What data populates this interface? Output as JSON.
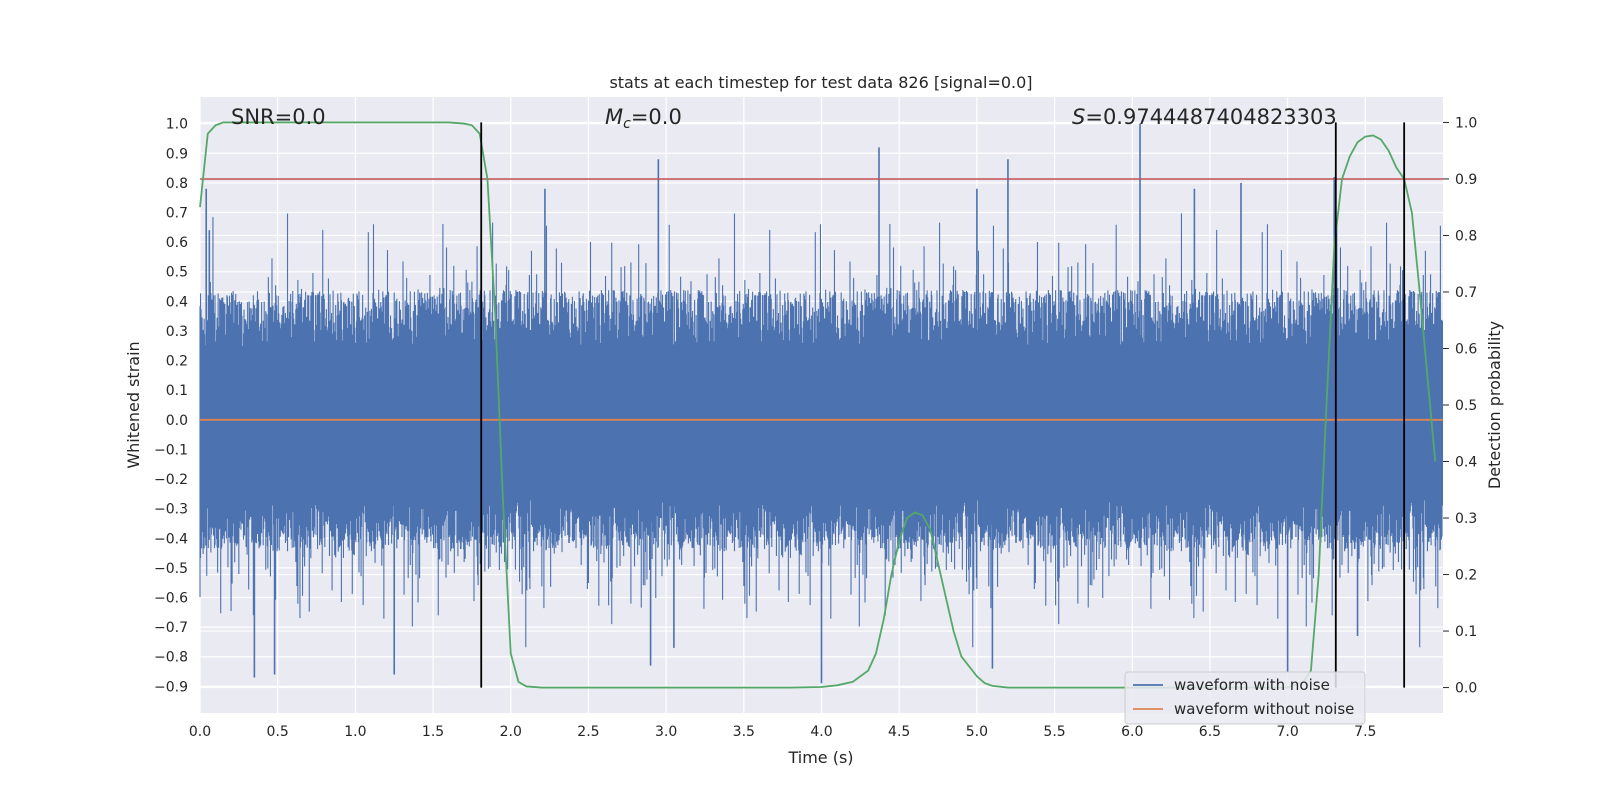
{
  "chart_data": {
    "type": "line",
    "title": "stats at each timestep for test data 826 [signal=0.0]",
    "xlabel": "Time (s)",
    "ylabel": "Whitened strain",
    "y2label": "Detection probability",
    "xlim": [
      0.0,
      8.0
    ],
    "ylim": [
      -0.99,
      1.09
    ],
    "y2lim": [
      -0.045,
      1.045
    ],
    "x_ticks": [
      "0.0",
      "0.5",
      "1.0",
      "1.5",
      "2.0",
      "2.5",
      "3.0",
      "3.5",
      "4.0",
      "4.5",
      "5.0",
      "5.5",
      "6.0",
      "6.5",
      "7.0",
      "7.5"
    ],
    "y_ticks": [
      "1.0",
      "0.9",
      "0.8",
      "0.7",
      "0.6",
      "0.5",
      "0.4",
      "0.3",
      "0.2",
      "0.1",
      "0.0",
      "−0.1",
      "−0.2",
      "−0.3",
      "−0.4",
      "−0.5",
      "−0.6",
      "−0.7",
      "−0.8",
      "−0.9"
    ],
    "y2_ticks": [
      "1.0",
      "0.9",
      "0.8",
      "0.7",
      "0.6",
      "0.5",
      "0.4",
      "0.3",
      "0.2",
      "0.1",
      "0.0"
    ],
    "grid": true,
    "legend_position": "bottom-right",
    "annotations": {
      "snr": "SNR=0.0",
      "mc_symbol": "M",
      "mc_sub": "c",
      "mc_value": "=0.0",
      "s_symbol": "S",
      "s_value": "=0.9744487404823303"
    },
    "series": [
      {
        "name": "waveform with noise",
        "color": "#4c72b0",
        "style": "dense noise",
        "core_band": [
          -0.35,
          0.44
        ],
        "spikes": [
          [
            0.04,
            0.78
          ],
          [
            0.06,
            0.64
          ],
          [
            0.35,
            -0.87
          ],
          [
            0.48,
            -0.86
          ],
          [
            1.25,
            -0.86
          ],
          [
            2.22,
            0.78
          ],
          [
            2.9,
            -0.83
          ],
          [
            2.95,
            0.88
          ],
          [
            3.05,
            -0.77
          ],
          [
            4.0,
            -0.89
          ],
          [
            4.37,
            0.92
          ],
          [
            5.2,
            0.88
          ],
          [
            5.0,
            0.78
          ],
          [
            5.1,
            -0.84
          ],
          [
            6.05,
            1.0
          ],
          [
            6.4,
            0.78
          ],
          [
            6.7,
            0.8
          ],
          [
            7.0,
            -0.85
          ],
          [
            7.3,
            0.82
          ],
          [
            7.45,
            -0.73
          ]
        ]
      },
      {
        "name": "waveform without noise",
        "color": "#dd8452",
        "values_constant": 0.0
      },
      {
        "name": "detection probability",
        "color": "#55a868",
        "axis": "right",
        "x": [
          0.0,
          0.05,
          0.1,
          0.15,
          0.3,
          0.6,
          1.0,
          1.4,
          1.6,
          1.7,
          1.75,
          1.8,
          1.85,
          1.9,
          1.95,
          2.0,
          2.05,
          2.1,
          2.2,
          2.5,
          3.0,
          3.5,
          3.8,
          4.0,
          4.1,
          4.2,
          4.3,
          4.35,
          4.4,
          4.45,
          4.5,
          4.55,
          4.6,
          4.65,
          4.7,
          4.75,
          4.8,
          4.85,
          4.9,
          5.0,
          5.05,
          5.1,
          5.2,
          5.4,
          6.0,
          7.0,
          7.1,
          7.15,
          7.2,
          7.25,
          7.3,
          7.35,
          7.4,
          7.45,
          7.5,
          7.55,
          7.6,
          7.65,
          7.7,
          7.75,
          7.8,
          7.85,
          7.9,
          7.95
        ],
        "values": [
          0.85,
          0.98,
          0.995,
          1.0,
          1.0,
          1.0,
          1.0,
          1.0,
          1.0,
          0.998,
          0.995,
          0.98,
          0.9,
          0.66,
          0.33,
          0.06,
          0.01,
          0.002,
          0.0,
          0.0,
          0.0,
          0.0,
          0.0,
          0.001,
          0.004,
          0.01,
          0.03,
          0.06,
          0.12,
          0.2,
          0.26,
          0.3,
          0.31,
          0.305,
          0.28,
          0.22,
          0.16,
          0.1,
          0.055,
          0.02,
          0.008,
          0.003,
          0.0,
          0.0,
          0.0,
          0.0,
          0.01,
          0.03,
          0.2,
          0.5,
          0.78,
          0.9,
          0.94,
          0.965,
          0.975,
          0.977,
          0.97,
          0.95,
          0.92,
          0.9,
          0.84,
          0.7,
          0.55,
          0.4
        ]
      }
    ],
    "threshold": {
      "value": 0.9,
      "axis": "right",
      "color": "#c44e52"
    },
    "vertical_lines": {
      "color": "#000000",
      "x": [
        1.81,
        7.31,
        7.75
      ]
    }
  }
}
